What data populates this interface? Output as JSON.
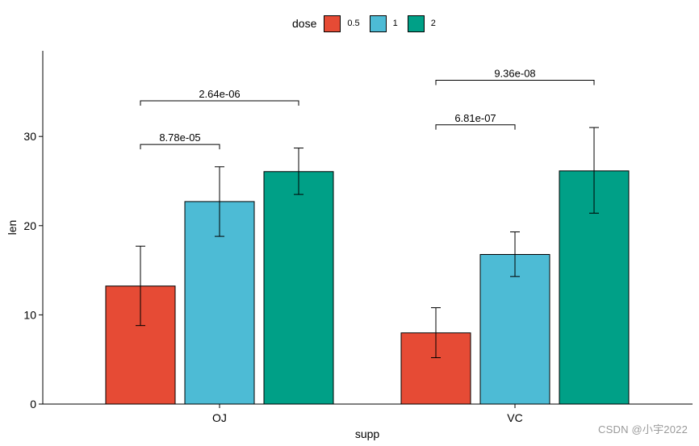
{
  "chart_data": {
    "type": "bar",
    "xlabel": "supp",
    "ylabel": "len",
    "ylim": [
      0,
      39.6
    ],
    "yticks": [
      0,
      10,
      20,
      30
    ],
    "categories": [
      "OJ",
      "VC"
    ],
    "legend": {
      "title": "dose",
      "position": "top"
    },
    "series": [
      {
        "name": "0.5",
        "color": "#E64B35",
        "values": [
          13.23,
          7.98
        ],
        "err_low": [
          8.8,
          5.2
        ],
        "err_high": [
          17.7,
          10.8
        ]
      },
      {
        "name": "1",
        "color": "#4DBBD5",
        "values": [
          22.7,
          16.77
        ],
        "err_low": [
          18.8,
          14.3
        ],
        "err_high": [
          26.6,
          19.3
        ]
      },
      {
        "name": "2",
        "color": "#00A087",
        "values": [
          26.06,
          26.14
        ],
        "err_low": [
          23.5,
          21.4
        ],
        "err_high": [
          28.7,
          31.0
        ]
      }
    ],
    "annotations": [
      {
        "group": "OJ",
        "from": "0.5",
        "to": "1",
        "label": "8.78e-05",
        "y": 29.1
      },
      {
        "group": "OJ",
        "from": "0.5",
        "to": "2",
        "label": "2.64e-06",
        "y": 34.0
      },
      {
        "group": "VC",
        "from": "0.5",
        "to": "1",
        "label": "6.81e-07",
        "y": 31.3
      },
      {
        "group": "VC",
        "from": "0.5",
        "to": "2",
        "label": "9.36e-08",
        "y": 36.3
      }
    ]
  },
  "watermark": "CSDN @小宇2022"
}
